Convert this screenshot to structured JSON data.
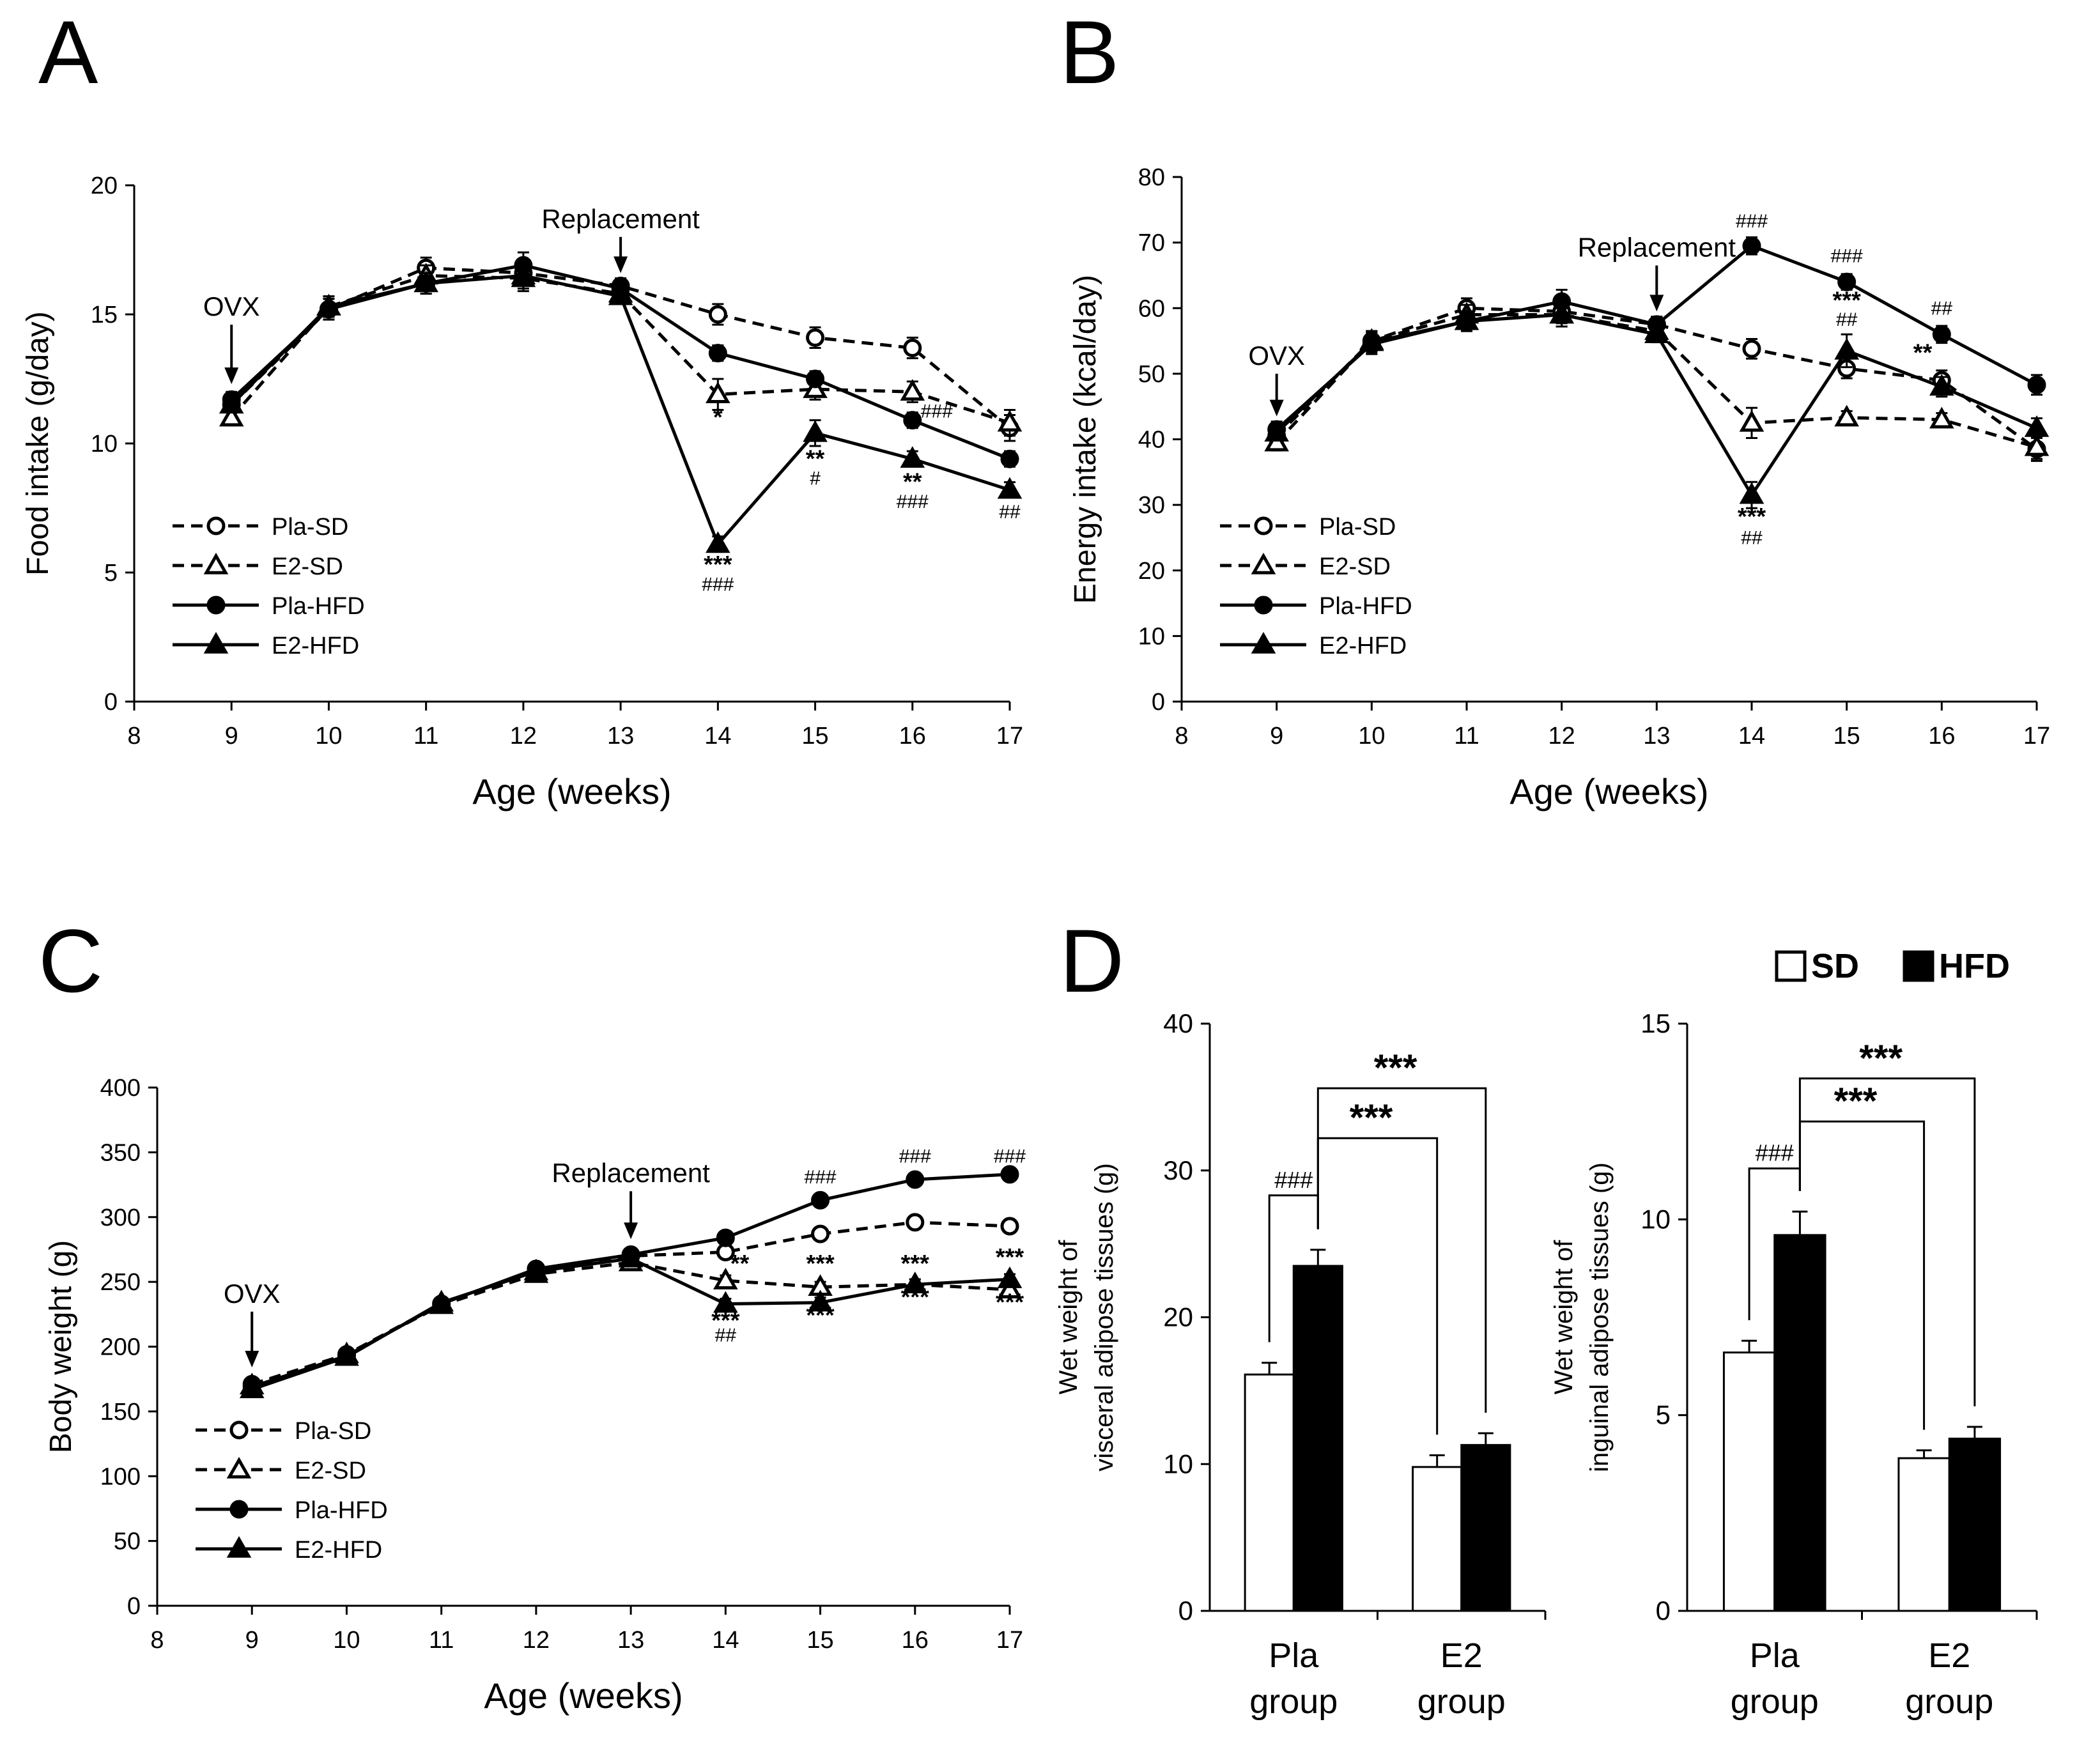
{
  "figure": {
    "panel_letters": [
      "A",
      "B",
      "C",
      "D"
    ]
  },
  "chart_data": [
    {
      "panel": "A",
      "type": "line",
      "title": "",
      "xlabel": "Age (weeks)",
      "ylabel": "Food intake (g/day)",
      "xlim": [
        8,
        17
      ],
      "ylim": [
        0,
        20
      ],
      "x_ticks": [
        8,
        9,
        10,
        11,
        12,
        13,
        14,
        15,
        16,
        17
      ],
      "y_ticks": [
        0,
        5,
        10,
        15,
        20
      ],
      "legend": "left-bottom",
      "x": [
        9,
        10,
        11,
        12,
        13,
        14,
        15,
        16,
        17
      ],
      "series": [
        {
          "name": "Pla-SD",
          "marker": "open-circle",
          "dash": true,
          "values": [
            11.5,
            15.2,
            16.8,
            16.6,
            16.1,
            15.0,
            14.1,
            13.7,
            10.6
          ],
          "errors": [
            0.3,
            0.4,
            0.4,
            0.5,
            0.3,
            0.4,
            0.4,
            0.4,
            0.5
          ]
        },
        {
          "name": "E2-SD",
          "marker": "open-triangle",
          "dash": true,
          "values": [
            11.0,
            15.3,
            16.5,
            16.4,
            15.8,
            11.9,
            12.1,
            12.0,
            10.8
          ],
          "errors": [
            0.3,
            0.4,
            0.4,
            0.5,
            0.3,
            0.6,
            0.4,
            0.4,
            0.5
          ]
        },
        {
          "name": "Pla-HFD",
          "marker": "filled-circle",
          "dash": false,
          "values": [
            11.7,
            15.2,
            16.2,
            16.9,
            16.0,
            13.5,
            12.5,
            10.9,
            9.4
          ],
          "errors": [
            0.3,
            0.4,
            0.4,
            0.5,
            0.3,
            0.3,
            0.3,
            0.3,
            0.3
          ]
        },
        {
          "name": "E2-HFD",
          "marker": "filled-triangle",
          "dash": false,
          "values": [
            11.5,
            15.3,
            16.2,
            16.5,
            15.7,
            6.1,
            10.4,
            9.4,
            8.2
          ],
          "errors": [
            0.3,
            0.4,
            0.4,
            0.5,
            0.3,
            0.3,
            0.5,
            0.3,
            0.3
          ]
        }
      ],
      "annotations": [
        {
          "text": "OVX",
          "x": 9,
          "y": 14.6,
          "arrow_to": 12.3,
          "label_above": true
        },
        {
          "text": "Replacement",
          "x": 13,
          "y": 18.0,
          "arrow_to": 16.6,
          "label_above": true
        },
        {
          "text": "*",
          "x": 14,
          "y": 10.7
        },
        {
          "text": "***",
          "x": 14,
          "y": 5.0
        },
        {
          "text": "###",
          "x": 14,
          "y": 4.3
        },
        {
          "text": "**",
          "x": 15,
          "y": 9.1
        },
        {
          "text": "#",
          "x": 15,
          "y": 8.4
        },
        {
          "text": "###",
          "x": 16.25,
          "y": 11.0
        },
        {
          "text": "**",
          "x": 16,
          "y": 8.2
        },
        {
          "text": "###",
          "x": 16,
          "y": 7.5
        },
        {
          "text": "##",
          "x": 17,
          "y": 7.1
        }
      ]
    },
    {
      "panel": "B",
      "type": "line",
      "title": "",
      "xlabel": "Age (weeks)",
      "ylabel": "Energy intake (kcal/day)",
      "xlim": [
        8,
        17
      ],
      "ylim": [
        0,
        80
      ],
      "x_ticks": [
        8,
        9,
        10,
        11,
        12,
        13,
        14,
        15,
        16,
        17
      ],
      "y_ticks": [
        0,
        10,
        20,
        30,
        40,
        50,
        60,
        70,
        80
      ],
      "legend": "left-bottom",
      "x": [
        9,
        10,
        11,
        12,
        13,
        14,
        15,
        16,
        17
      ],
      "series": [
        {
          "name": "Pla-SD",
          "marker": "open-circle",
          "dash": true,
          "values": [
            40.5,
            55.0,
            60.0,
            59.5,
            57.5,
            53.8,
            50.8,
            49.0,
            38.5
          ],
          "errors": [
            1.2,
            1.5,
            1.5,
            1.8,
            1.2,
            1.5,
            1.5,
            1.5,
            1.8
          ]
        },
        {
          "name": "E2-SD",
          "marker": "open-triangle",
          "dash": true,
          "values": [
            39.5,
            55.0,
            59.0,
            59.0,
            56.5,
            42.5,
            43.3,
            43.0,
            38.8
          ],
          "errors": [
            1.2,
            1.5,
            1.5,
            1.8,
            1.2,
            2.3,
            1.0,
            1.0,
            1.8
          ]
        },
        {
          "name": "Pla-HFD",
          "marker": "filled-circle",
          "dash": false,
          "values": [
            41.5,
            54.5,
            58.0,
            61.0,
            57.5,
            69.5,
            64.0,
            56.0,
            48.3
          ],
          "errors": [
            1.2,
            1.5,
            1.5,
            1.8,
            1.2,
            1.3,
            1.2,
            1.3,
            1.5
          ]
        },
        {
          "name": "E2-HFD",
          "marker": "filled-triangle",
          "dash": false,
          "values": [
            41.0,
            54.8,
            58.0,
            59.0,
            56.0,
            31.5,
            53.5,
            48.0,
            41.7
          ],
          "errors": [
            1.2,
            1.5,
            1.5,
            1.8,
            1.2,
            2.0,
            2.5,
            1.5,
            1.5
          ]
        }
      ],
      "annotations": [
        {
          "text": "OVX",
          "x": 9,
          "y": 50.0,
          "arrow_to": 43.5,
          "label_above": true
        },
        {
          "text": "Replacement",
          "x": 13,
          "y": 66.5,
          "arrow_to": 59.5,
          "label_above": true
        },
        {
          "text": "###",
          "x": 14,
          "y": 72.3
        },
        {
          "text": "###",
          "x": 15,
          "y": 67.0
        },
        {
          "text": "***",
          "x": 15,
          "y": 60.0
        },
        {
          "text": "##",
          "x": 15,
          "y": 57.3
        },
        {
          "text": "##",
          "x": 16,
          "y": 59.0
        },
        {
          "text": "**",
          "x": 15.8,
          "y": 52.0
        },
        {
          "text": "***",
          "x": 14,
          "y": 27.0
        },
        {
          "text": "##",
          "x": 14,
          "y": 24.0
        }
      ]
    },
    {
      "panel": "C",
      "type": "line",
      "title": "",
      "xlabel": "Age (weeks)",
      "ylabel": "Body weight (g)",
      "xlim": [
        8,
        17
      ],
      "ylim": [
        0,
        400
      ],
      "x_ticks": [
        8,
        9,
        10,
        11,
        12,
        13,
        14,
        15,
        16,
        17
      ],
      "y_ticks": [
        0,
        50,
        100,
        150,
        200,
        250,
        300,
        350,
        400
      ],
      "legend": "left-bottom",
      "x": [
        9,
        10,
        11,
        12,
        13,
        14,
        15,
        16,
        17
      ],
      "series": [
        {
          "name": "Pla-SD",
          "marker": "open-circle",
          "dash": true,
          "values": [
            171,
            194,
            233,
            257,
            270,
            273,
            287,
            296,
            293
          ],
          "errors": [
            3,
            3,
            3,
            3,
            3,
            4,
            4,
            4,
            4
          ]
        },
        {
          "name": "E2-SD",
          "marker": "open-triangle",
          "dash": true,
          "values": [
            170,
            194,
            232,
            256,
            265,
            251,
            246,
            248,
            244
          ],
          "errors": [
            3,
            3,
            3,
            3,
            3,
            4,
            4,
            4,
            4
          ]
        },
        {
          "name": "Pla-HFD",
          "marker": "filled-circle",
          "dash": false,
          "values": [
            169,
            193,
            233,
            260,
            271,
            284,
            313,
            329,
            333
          ],
          "errors": [
            3,
            3,
            3,
            3,
            3,
            4,
            4,
            4,
            4
          ]
        },
        {
          "name": "E2-HFD",
          "marker": "filled-triangle",
          "dash": false,
          "values": [
            167,
            192,
            234,
            258,
            268,
            233,
            234,
            248,
            252
          ],
          "errors": [
            3,
            3,
            3,
            3,
            3,
            4,
            4,
            4,
            4
          ]
        }
      ],
      "annotations": [
        {
          "text": "OVX",
          "x": 9,
          "y": 227,
          "arrow_to": 184,
          "label_above": true
        },
        {
          "text": "Replacement",
          "x": 13,
          "y": 320,
          "arrow_to": 283,
          "label_above": true
        },
        {
          "text": "###",
          "x": 15,
          "y": 326
        },
        {
          "text": "###",
          "x": 16,
          "y": 342
        },
        {
          "text": "###",
          "x": 17,
          "y": 342
        },
        {
          "text": "**",
          "x": 14.15,
          "y": 258
        },
        {
          "text": "***",
          "x": 15,
          "y": 258
        },
        {
          "text": "***",
          "x": 16,
          "y": 258
        },
        {
          "text": "***",
          "x": 17,
          "y": 263
        },
        {
          "text": "***",
          "x": 14,
          "y": 214
        },
        {
          "text": "##",
          "x": 14,
          "y": 204
        },
        {
          "text": "***",
          "x": 15,
          "y": 218
        },
        {
          "text": "***",
          "x": 16,
          "y": 232
        },
        {
          "text": "***",
          "x": 17,
          "y": 228
        }
      ]
    },
    {
      "panel": "D-left",
      "type": "bar",
      "title": "",
      "xlabel": "",
      "ylabel": "Wet weight of\nvisceral adipose tissues (g)",
      "ylim": [
        0,
        40
      ],
      "y_ticks": [
        0,
        10,
        20,
        30,
        40
      ],
      "categories": [
        "Pla group",
        "E2 group"
      ],
      "series": [
        {
          "name": "SD",
          "color": "#ffffff",
          "values": [
            16.1,
            9.8
          ],
          "errors": [
            0.8,
            0.8
          ]
        },
        {
          "name": "HFD",
          "color": "#000000",
          "values": [
            23.5,
            11.3
          ],
          "errors": [
            1.1,
            0.8
          ]
        }
      ],
      "brackets": [
        {
          "from": "Pla-SD",
          "to": "Pla-HFD",
          "label": "###",
          "level": 28.3
        },
        {
          "from": "Pla-HFD",
          "to": "E2-SD",
          "label": "***",
          "level": 32.2
        },
        {
          "from": "Pla-HFD",
          "to": "E2-HFD",
          "label": "***",
          "level": 35.6
        }
      ]
    },
    {
      "panel": "D-right",
      "type": "bar",
      "title": "",
      "xlabel": "",
      "ylabel": "Wet weight of\ninguinal adipose tissues (g)",
      "ylim": [
        0,
        15
      ],
      "y_ticks": [
        0,
        5,
        10,
        15
      ],
      "categories": [
        "Pla group",
        "E2 group"
      ],
      "legend_labels": [
        "SD",
        "HFD"
      ],
      "series": [
        {
          "name": "SD",
          "color": "#ffffff",
          "values": [
            6.6,
            3.9
          ],
          "errors": [
            0.3,
            0.2
          ]
        },
        {
          "name": "HFD",
          "color": "#000000",
          "values": [
            9.6,
            4.4
          ],
          "errors": [
            0.6,
            0.3
          ]
        }
      ],
      "brackets": [
        {
          "from": "Pla-SD",
          "to": "Pla-HFD",
          "label": "###",
          "level": 11.3
        },
        {
          "from": "Pla-HFD",
          "to": "E2-SD",
          "label": "***",
          "level": 12.5
        },
        {
          "from": "Pla-HFD",
          "to": "E2-HFD",
          "label": "***",
          "level": 13.6
        }
      ]
    }
  ]
}
